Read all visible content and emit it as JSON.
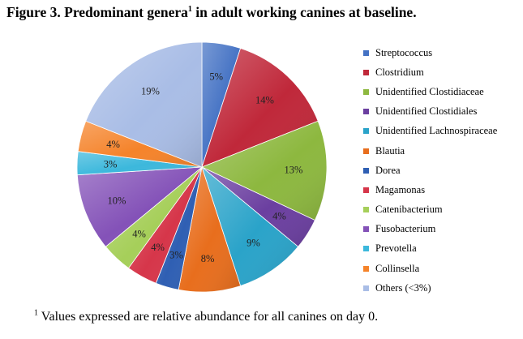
{
  "title": {
    "main": "Figure 3. Predominant genera",
    "sup": "1",
    "rest": " in adult working canines at baseline."
  },
  "footnote": {
    "sup": "1",
    "text": " Values expressed are relative abundance for all canines on day 0."
  },
  "chart_data": {
    "type": "pie",
    "start_angle_deg": 0,
    "direction": "clockwise",
    "label_format": "{v}%",
    "legend_position": "right",
    "slices": [
      {
        "label": "Streptococcus",
        "value": 5,
        "color": "#4472c4",
        "text_color": "#ffffff"
      },
      {
        "label": "Clostridium",
        "value": 14,
        "color": "#c0283a",
        "text_color": "#ffffff"
      },
      {
        "label": "Unidentified Clostidiaceae",
        "value": 13,
        "color": "#8db83f",
        "text_color": "#222222"
      },
      {
        "label": "Unidentified Clostidiales",
        "value": 4,
        "color": "#6b3fa0",
        "text_color": "#222222"
      },
      {
        "label": "Unidentified Lachnospiraceae",
        "value": 9,
        "color": "#2aa3c9",
        "text_color": "#222222"
      },
      {
        "label": "Blautia",
        "value": 8,
        "color": "#e86e1d",
        "text_color": "#222222"
      },
      {
        "label": "Dorea",
        "value": 3,
        "color": "#2f5fb3",
        "text_color": "#222222"
      },
      {
        "label": "Magamonas",
        "value": 4,
        "color": "#d6364a",
        "text_color": "#222222"
      },
      {
        "label": "Catenibacterium",
        "value": 4,
        "color": "#a6cf5a",
        "text_color": "#222222"
      },
      {
        "label": "Fusobacterium",
        "value": 10,
        "color": "#8452b8",
        "text_color": "#222222"
      },
      {
        "label": "Prevotella",
        "value": 3,
        "color": "#3cb8dc",
        "text_color": "#222222"
      },
      {
        "label": "Collinsella",
        "value": 4,
        "color": "#f5832a",
        "text_color": "#222222"
      },
      {
        "label": "Others (<3%)",
        "value": 19,
        "color": "#a9bde6",
        "text_color": "#222222"
      }
    ]
  }
}
